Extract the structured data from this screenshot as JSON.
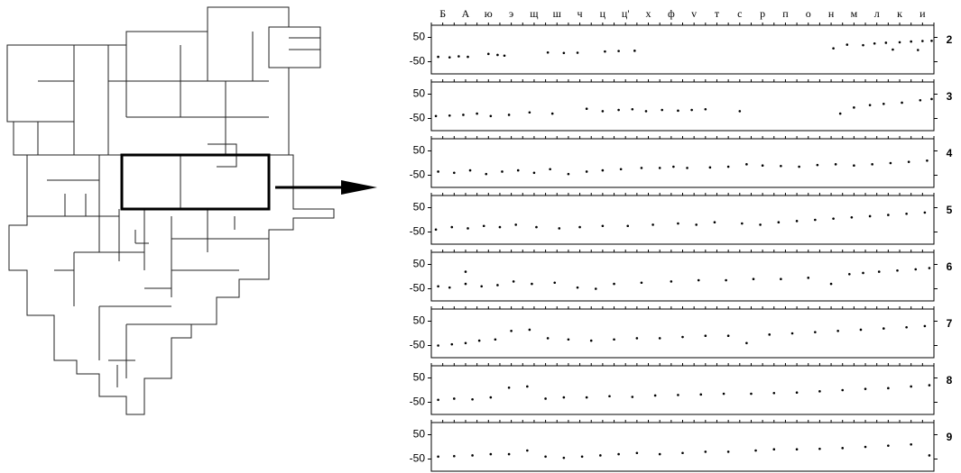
{
  "chart_data": [
    {
      "type": "scatter",
      "label": "2",
      "color": "#000000",
      "xlim": [
        0,
        22
      ],
      "ylim": [
        -100,
        100
      ],
      "yticks": [
        50,
        -50
      ],
      "xticks": [
        {
          "value": 0.5,
          "label": "Б"
        },
        {
          "value": 1.5,
          "label": "А"
        },
        {
          "value": 2.5,
          "label": "ю"
        },
        {
          "value": 3.5,
          "label": "э"
        },
        {
          "value": 4.5,
          "label": "щ"
        },
        {
          "value": 5.5,
          "label": "ш"
        },
        {
          "value": 6.5,
          "label": "ч"
        },
        {
          "value": 7.5,
          "label": "ц"
        },
        {
          "value": 8.5,
          "label": "ц'"
        },
        {
          "value": 9.5,
          "label": "х"
        },
        {
          "value": 10.5,
          "label": "ф"
        },
        {
          "value": 11.5,
          "label": "v"
        },
        {
          "value": 12.5,
          "label": "т"
        },
        {
          "value": 13.5,
          "label": "c"
        },
        {
          "value": 14.5,
          "label": "p"
        },
        {
          "value": 15.5,
          "label": "п"
        },
        {
          "value": 16.5,
          "label": "о"
        },
        {
          "value": 17.5,
          "label": "н"
        },
        {
          "value": 18.5,
          "label": "м"
        },
        {
          "value": 19.5,
          "label": "л"
        },
        {
          "value": 20.5,
          "label": "к"
        },
        {
          "value": 21.5,
          "label": "и"
        }
      ],
      "x": [
        0.3,
        0.8,
        1.2,
        1.6,
        2.5,
        2.9,
        3.2,
        5.1,
        5.8,
        6.4,
        7.6,
        8.2,
        8.9,
        17.6,
        18.2,
        18.9,
        19.4,
        19.9,
        20.5,
        21.0,
        21.5,
        21.9,
        20.2,
        21.3
      ],
      "y": [
        -30,
        -32,
        -28,
        -30,
        -18,
        -22,
        -25,
        -12,
        -14,
        -13,
        -8,
        -6,
        -5,
        5,
        20,
        18,
        25,
        28,
        30,
        33,
        35,
        36,
        0,
        -2
      ]
    },
    {
      "type": "scatter",
      "label": "3",
      "color": "#000000",
      "xlim": [
        0,
        22
      ],
      "ylim": [
        -100,
        100
      ],
      "yticks": [
        50,
        -50
      ],
      "x": [
        0.2,
        0.8,
        1.4,
        2.0,
        2.6,
        3.4,
        4.3,
        5.3,
        6.8,
        7.5,
        8.2,
        8.8,
        9.4,
        10.1,
        10.8,
        11.4,
        12.0,
        13.5,
        17.9,
        18.5,
        19.2,
        19.8,
        20.6,
        21.4,
        21.9
      ],
      "y": [
        -40,
        -38,
        -35,
        -30,
        -40,
        -35,
        -25,
        -30,
        -10,
        -20,
        -15,
        -12,
        -20,
        -15,
        -18,
        -15,
        -12,
        -20,
        -30,
        -5,
        5,
        10,
        15,
        25,
        30
      ]
    },
    {
      "type": "scatter",
      "label": "4",
      "color": "#000000",
      "xlim": [
        0,
        22
      ],
      "ylim": [
        -100,
        100
      ],
      "yticks": [
        50,
        -50
      ],
      "x": [
        0.3,
        1.0,
        1.7,
        2.4,
        3.1,
        3.8,
        4.5,
        5.2,
        6.0,
        6.8,
        7.5,
        8.3,
        9.2,
        10.0,
        10.6,
        11.2,
        12.2,
        13.0,
        13.8,
        14.5,
        15.3,
        16.1,
        16.9,
        17.7,
        18.5,
        19.3,
        20.1,
        20.9,
        21.7
      ],
      "y": [
        -35,
        -40,
        -30,
        -45,
        -35,
        -30,
        -40,
        -25,
        -45,
        -35,
        -30,
        -25,
        -20,
        -20,
        -15,
        -20,
        -18,
        -15,
        -5,
        -10,
        -12,
        -15,
        -8,
        -5,
        -10,
        -5,
        0,
        5,
        10
      ]
    },
    {
      "type": "scatter",
      "label": "5",
      "color": "#000000",
      "xlim": [
        0,
        22
      ],
      "ylim": [
        -100,
        100
      ],
      "yticks": [
        50,
        -50
      ],
      "x": [
        0.2,
        0.9,
        1.6,
        2.3,
        3.0,
        3.7,
        4.6,
        5.6,
        6.5,
        7.5,
        8.6,
        9.7,
        10.8,
        11.6,
        12.4,
        13.6,
        14.4,
        15.2,
        16.0,
        16.8,
        17.6,
        18.4,
        19.2,
        20.0,
        20.8,
        21.6
      ],
      "y": [
        -40,
        -30,
        -35,
        -25,
        -30,
        -20,
        -30,
        -35,
        -30,
        -25,
        -25,
        -20,
        -15,
        -20,
        -10,
        -15,
        -20,
        -10,
        -5,
        0,
        5,
        10,
        15,
        20,
        25,
        30
      ]
    },
    {
      "type": "scatter",
      "label": "6",
      "color": "#000000",
      "xlim": [
        0,
        22
      ],
      "ylim": [
        -100,
        100
      ],
      "yticks": [
        50,
        -50
      ],
      "x": [
        0.3,
        0.8,
        1.5,
        2.2,
        2.9,
        3.6,
        4.4,
        5.4,
        6.4,
        7.2,
        8.0,
        9.2,
        10.5,
        11.7,
        12.9,
        14.1,
        15.3,
        16.5,
        17.5,
        18.3,
        18.9,
        19.6,
        20.4,
        21.2,
        21.8,
        1.5
      ],
      "y": [
        -40,
        -45,
        -30,
        -40,
        -35,
        -20,
        -30,
        -25,
        -45,
        -50,
        -30,
        -25,
        -20,
        -15,
        -15,
        -10,
        -10,
        -5,
        -30,
        10,
        15,
        20,
        25,
        30,
        35,
        20
      ]
    },
    {
      "type": "scatter",
      "label": "7",
      "color": "#000000",
      "xlim": [
        0,
        22
      ],
      "ylim": [
        -100,
        100
      ],
      "yticks": [
        50,
        -50
      ],
      "x": [
        0.3,
        0.9,
        1.5,
        2.1,
        2.8,
        3.5,
        4.3,
        5.1,
        6.0,
        7.0,
        8.0,
        9.0,
        10.0,
        11.0,
        12.0,
        13.0,
        13.8,
        14.8,
        15.8,
        16.8,
        17.8,
        18.8,
        19.8,
        20.8,
        21.6
      ],
      "y": [
        -50,
        -45,
        -40,
        -30,
        -25,
        10,
        15,
        -20,
        -25,
        -30,
        -25,
        -20,
        -20,
        -15,
        -10,
        -10,
        -40,
        -5,
        0,
        5,
        10,
        15,
        20,
        25,
        30
      ]
    },
    {
      "type": "scatter",
      "label": "8",
      "color": "#000000",
      "xlim": [
        0,
        22
      ],
      "ylim": [
        -100,
        100
      ],
      "yticks": [
        50,
        -50
      ],
      "x": [
        0.3,
        1.0,
        1.8,
        2.6,
        3.4,
        4.2,
        5.0,
        5.8,
        6.8,
        7.8,
        8.8,
        9.8,
        10.8,
        11.8,
        12.8,
        14.0,
        15.0,
        16.0,
        17.0,
        18.0,
        19.0,
        20.0,
        21.0,
        21.8
      ],
      "y": [
        -40,
        -35,
        -38,
        -30,
        10,
        15,
        -35,
        -30,
        -30,
        -25,
        -28,
        -22,
        -20,
        -18,
        -15,
        -15,
        -12,
        -10,
        -5,
        0,
        5,
        8,
        15,
        20
      ]
    },
    {
      "type": "scatter",
      "label": "9",
      "color": "#000000",
      "xlim": [
        0,
        22
      ],
      "ylim": [
        -100,
        100
      ],
      "yticks": [
        50,
        -50
      ],
      "x": [
        0.3,
        1.0,
        1.8,
        2.6,
        3.4,
        4.2,
        5.0,
        5.8,
        6.6,
        7.4,
        8.2,
        9.0,
        10.0,
        11.0,
        12.0,
        13.0,
        14.2,
        15.0,
        16.0,
        17.0,
        18.0,
        19.0,
        20.0,
        21.0,
        21.8
      ],
      "y": [
        -40,
        -38,
        -35,
        -30,
        -30,
        -15,
        -40,
        -45,
        -40,
        -35,
        -30,
        -25,
        -30,
        -25,
        -20,
        -20,
        -15,
        -10,
        -10,
        -8,
        -5,
        0,
        5,
        10,
        -35
      ]
    }
  ]
}
